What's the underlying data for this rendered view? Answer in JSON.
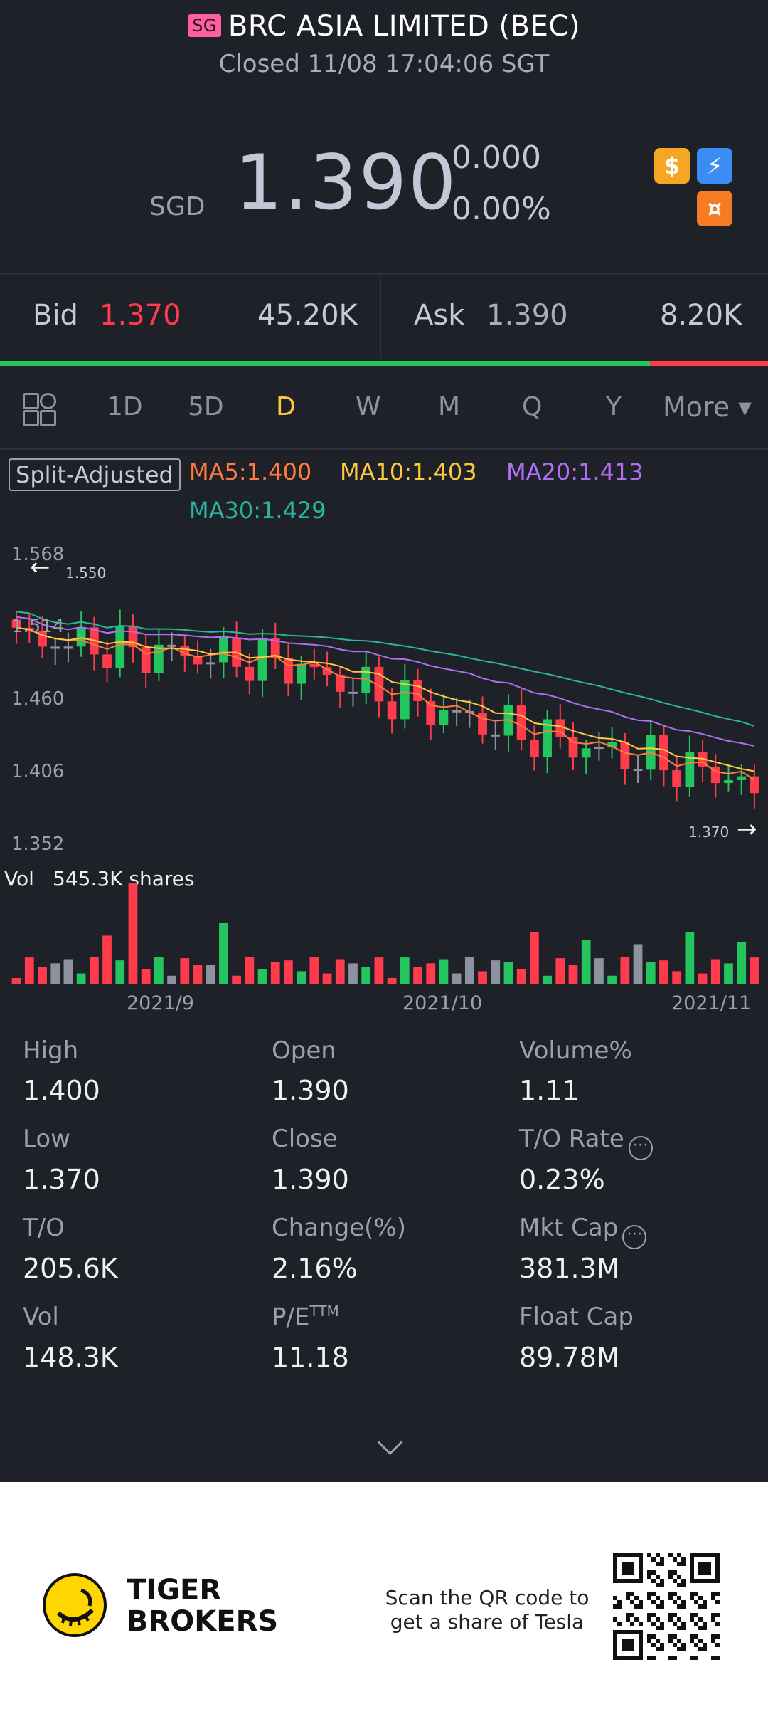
{
  "header": {
    "market_badge": "SG",
    "title": "BRC ASIA LIMITED (BEC)",
    "status": "Closed 11/08 17:04:06 SGT",
    "currency": "SGD",
    "price": "1.390",
    "change": "0.000",
    "change_pct": "0.00%",
    "badges": [
      {
        "icon": "dollar-icon",
        "glyph": "$",
        "color": "#f5a623"
      },
      {
        "icon": "lightning-icon",
        "glyph": "⚡",
        "color": "#3a8df5"
      },
      {
        "icon": "coin-icon",
        "glyph": "¤",
        "color": "#f57c23"
      }
    ]
  },
  "quote": {
    "bid_label": "Bid",
    "bid_price": "1.370",
    "bid_size": "45.20K",
    "ask_label": "Ask",
    "ask_price": "1.390",
    "ask_size": "8.20K",
    "bid_share": 0.846
  },
  "tabs": [
    "1D",
    "5D",
    "D",
    "W",
    "M",
    "Q",
    "Y",
    "More"
  ],
  "active_tab": "D",
  "ma_legend": {
    "adjust_label": "Split-Adjusted",
    "ma5": "MA5:1.400",
    "ma10": "MA10:1.403",
    "ma20": "MA20:1.413",
    "ma30": "MA30:1.429"
  },
  "colors": {
    "up": "#22c55e",
    "down": "#ff3b4c",
    "ma5": "#ff7a3d",
    "ma10": "#ffc83d",
    "ma20": "#b06ef0",
    "ma30": "#2bb5a0",
    "neutral": "#8d92a0"
  },
  "chart_data": {
    "type": "candlestick",
    "y_ticks": [
      "1.568",
      "1.514",
      "1.460",
      "1.406",
      "1.352"
    ],
    "ylim": [
      1.352,
      1.568
    ],
    "x_ticks": [
      "2021/9",
      "2021/10",
      "2021/11"
    ],
    "high_marker": "1.550",
    "low_marker": "1.370",
    "volume_label": "Vol",
    "volume_value": "545.3K shares"
  },
  "stats": [
    {
      "label": "High",
      "value": "1.400"
    },
    {
      "label": "Open",
      "value": "1.390"
    },
    {
      "label": "Volume%",
      "value": "1.11"
    },
    {
      "label": "Low",
      "value": "1.370"
    },
    {
      "label": "Close",
      "value": "1.390"
    },
    {
      "label": "T/O Rate",
      "value": "0.23%"
    },
    {
      "label": "T/O",
      "value": "205.6K"
    },
    {
      "label": "Change(%)",
      "value": "2.16%"
    },
    {
      "label": "Mkt Cap",
      "value": "381.3M"
    },
    {
      "label": "Vol",
      "value": "148.3K"
    },
    {
      "label": "P/E",
      "value": "11.18"
    },
    {
      "label": "Float Cap",
      "value": "89.78M"
    }
  ],
  "pe_superscript": "TTM",
  "footer": {
    "brand_line1": "TIGER",
    "brand_line2": "BROKERS",
    "scan_text": "Scan the QR code to get a share of Tesla"
  }
}
